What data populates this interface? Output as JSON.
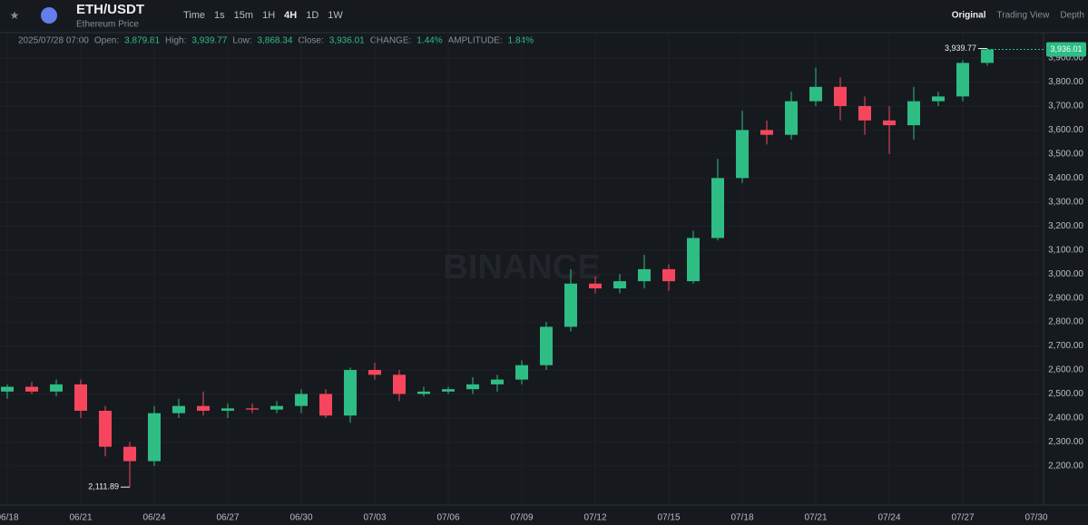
{
  "header": {
    "pair": "ETH/USDT",
    "subtitle": "Ethereum Price",
    "intervals": [
      "Time",
      "1s",
      "15m",
      "1H",
      "4H",
      "1D",
      "1W"
    ],
    "active_interval": "4H",
    "views": [
      "Original",
      "Trading View",
      "Depth"
    ],
    "active_view": "Original",
    "info": [
      "2025/07/28 07:00",
      "Open:",
      "3,879.81",
      "High:",
      "3,939.77",
      "Low:",
      "3,868.34",
      "Close:",
      "3,936.01",
      "CHANGE:",
      "1.44%",
      "AMPLITUDE:",
      "1.84%"
    ],
    "watermark": "BINANCE"
  },
  "chart_data": {
    "type": "candlestick",
    "x": [
      "06/18",
      "06/19",
      "06/20",
      "06/21",
      "06/22",
      "06/23",
      "06/24",
      "06/25",
      "06/26",
      "06/27",
      "06/28",
      "06/29",
      "06/30",
      "07/01",
      "07/02",
      "07/03",
      "07/04",
      "07/05",
      "07/06",
      "07/07",
      "07/08",
      "07/09",
      "07/10",
      "07/11",
      "07/12",
      "07/13",
      "07/14",
      "07/15",
      "07/16",
      "07/17",
      "07/18",
      "07/19",
      "07/20",
      "07/21",
      "07/22",
      "07/23",
      "07/24",
      "07/25",
      "07/26",
      "07/27",
      "07/28"
    ],
    "open": [
      2510,
      2530,
      2510,
      2540,
      2430,
      2280,
      2220,
      2420,
      2450,
      2430,
      2440,
      2435,
      2450,
      2500,
      2410,
      2600,
      2580,
      2500,
      2510,
      2520,
      2540,
      2560,
      2620,
      2780,
      2960,
      2940,
      2970,
      3020,
      2970,
      3150,
      3400,
      3600,
      3580,
      3720,
      3780,
      3700,
      3640,
      3620,
      3720,
      3740,
      3879.81
    ],
    "high": [
      2540,
      2550,
      2560,
      2560,
      2450,
      2300,
      2450,
      2480,
      2510,
      2460,
      2460,
      2470,
      2520,
      2520,
      2610,
      2630,
      2600,
      2530,
      2530,
      2570,
      2580,
      2640,
      2800,
      3020,
      2990,
      3000,
      3080,
      3040,
      3180,
      3480,
      3680,
      3640,
      3760,
      3860,
      3820,
      3740,
      3700,
      3780,
      3760,
      3890,
      3939.77
    ],
    "low": [
      2480,
      2500,
      2490,
      2400,
      2240,
      2111.89,
      2200,
      2400,
      2410,
      2400,
      2420,
      2420,
      2420,
      2400,
      2380,
      2560,
      2470,
      2490,
      2500,
      2500,
      2510,
      2540,
      2600,
      2760,
      2920,
      2920,
      2940,
      2930,
      2960,
      3140,
      3380,
      3540,
      3560,
      3700,
      3640,
      3580,
      3500,
      3560,
      3700,
      3720,
      3868.34
    ],
    "close": [
      2530,
      2510,
      2540,
      2430,
      2280,
      2220,
      2420,
      2450,
      2430,
      2440,
      2435,
      2450,
      2500,
      2410,
      2600,
      2580,
      2500,
      2510,
      2520,
      2540,
      2560,
      2620,
      2780,
      2960,
      2940,
      2970,
      3020,
      2970,
      3150,
      3400,
      3600,
      3580,
      3720,
      3780,
      3700,
      3640,
      3620,
      3720,
      3740,
      3879.81,
      3936.01
    ],
    "up_color": "#2ebd85",
    "down_color": "#f6465d",
    "low_label": "2,111.89",
    "high_label": "3,939.77",
    "last_price_label": "3,936.01",
    "ylim": [
      2037,
      3953
    ],
    "yticks": [
      {
        "value": 2200,
        "label": "2,200.00"
      },
      {
        "value": 2300,
        "label": "2,300.00"
      },
      {
        "value": 2400,
        "label": "2,400.00"
      },
      {
        "value": 2500,
        "label": "2,500.00"
      },
      {
        "value": 2600,
        "label": "2,600.00"
      },
      {
        "value": 2700,
        "label": "2,700.00"
      },
      {
        "value": 2800,
        "label": "2,800.00"
      },
      {
        "value": 2900,
        "label": "2,900.00"
      },
      {
        "value": 3000,
        "label": "3,000.00"
      },
      {
        "value": 3100,
        "label": "3,100.00"
      },
      {
        "value": 3200,
        "label": "3,200.00"
      },
      {
        "value": 3300,
        "label": "3,300.00"
      },
      {
        "value": 3400,
        "label": "3,400.00"
      },
      {
        "value": 3500,
        "label": "3,500.00"
      },
      {
        "value": 3600,
        "label": "3,600.00"
      },
      {
        "value": 3700,
        "label": "3,700.00"
      },
      {
        "value": 3800,
        "label": "3,800.00"
      },
      {
        "value": 3900,
        "label": "3,900.00"
      }
    ],
    "xticks": [
      "06/18",
      "06/21",
      "06/24",
      "06/27",
      "06/30",
      "07/03",
      "07/06",
      "07/09",
      "07/12",
      "07/15",
      "07/18",
      "07/21",
      "07/24",
      "07/27",
      "07/30"
    ],
    "grid": true
  }
}
